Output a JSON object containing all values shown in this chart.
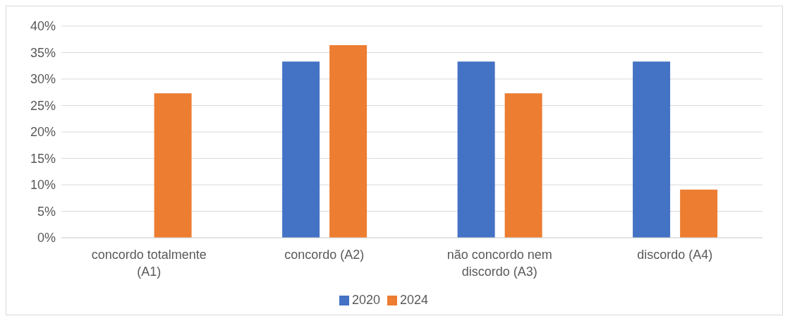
{
  "chart_data": {
    "type": "bar",
    "categories": [
      "concordo totalmente (A1)",
      "concordo (A2)",
      "não concordo nem discordo (A3)",
      "discordo (A4)"
    ],
    "series": [
      {
        "name": "2020",
        "color": "#4472c4",
        "values": [
          0,
          33.3,
          33.3,
          33.3
        ]
      },
      {
        "name": "2024",
        "color": "#ed7d31",
        "values": [
          27.3,
          36.4,
          27.3,
          9.1
        ]
      }
    ],
    "ylim": [
      0,
      40
    ],
    "yticks": [
      {
        "value": 0,
        "label": "0%"
      },
      {
        "value": 5,
        "label": "5%"
      },
      {
        "value": 10,
        "label": "10%"
      },
      {
        "value": 15,
        "label": "15%"
      },
      {
        "value": 20,
        "label": "20%"
      },
      {
        "value": 25,
        "label": "25%"
      },
      {
        "value": 30,
        "label": "30%"
      },
      {
        "value": 35,
        "label": "35%"
      },
      {
        "value": 40,
        "label": "40%"
      }
    ],
    "grid": "y",
    "legend": "bottom"
  }
}
